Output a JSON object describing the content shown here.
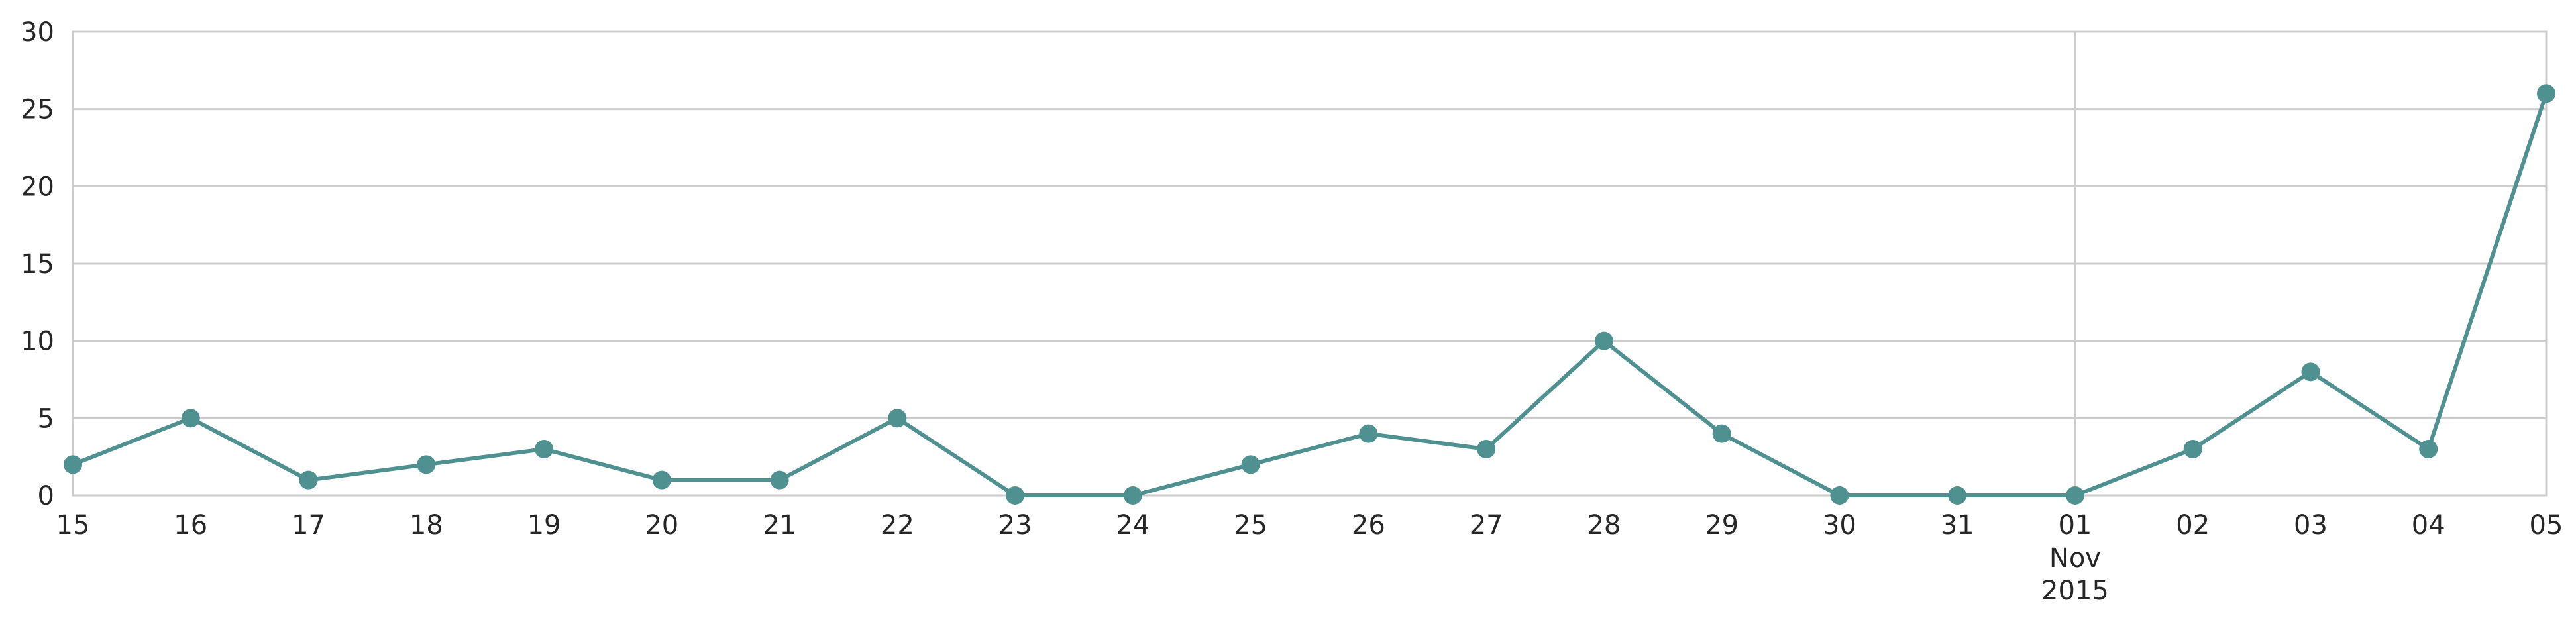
{
  "chart_data": {
    "type": "line",
    "title": "",
    "xlabel": "",
    "ylabel": "",
    "x": [
      "2015-10-15",
      "2015-10-16",
      "2015-10-17",
      "2015-10-18",
      "2015-10-19",
      "2015-10-20",
      "2015-10-21",
      "2015-10-22",
      "2015-10-23",
      "2015-10-24",
      "2015-10-25",
      "2015-10-26",
      "2015-10-27",
      "2015-10-28",
      "2015-10-29",
      "2015-10-30",
      "2015-10-31",
      "2015-11-01",
      "2015-11-02",
      "2015-11-03",
      "2015-11-04",
      "2015-11-05"
    ],
    "values": [
      2,
      5,
      1,
      2,
      3,
      1,
      1,
      5,
      0,
      0,
      2,
      4,
      3,
      10,
      4,
      0,
      0,
      0,
      3,
      8,
      3,
      26
    ],
    "x_tick_labels": [
      "15",
      "16",
      "17",
      "18",
      "19",
      "20",
      "21",
      "22",
      "23",
      "24",
      "25",
      "26",
      "27",
      "28",
      "29",
      "30",
      "31",
      "01",
      "02",
      "03",
      "04",
      "05"
    ],
    "x_month_label": "Nov",
    "x_year_label": "2015",
    "y_ticks": [
      "0",
      "5",
      "10",
      "15",
      "20",
      "25",
      "30"
    ],
    "ylim": [
      0,
      30
    ],
    "grid": "horizontal, plus a vertical line at the month boundary",
    "line_color": "#4f9090",
    "marker": "circle"
  }
}
